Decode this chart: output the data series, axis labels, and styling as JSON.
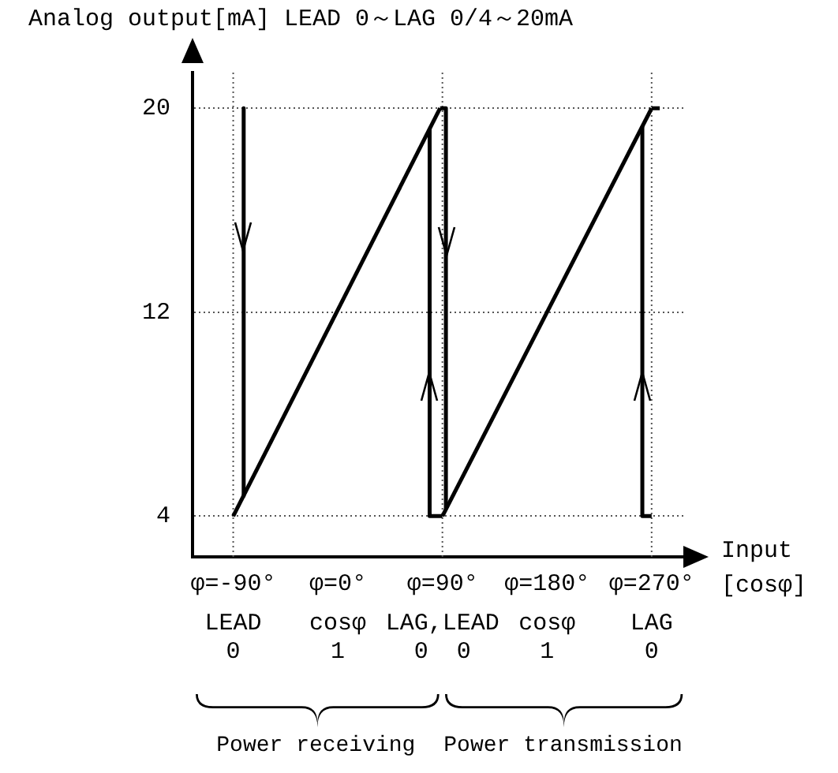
{
  "chart_data": {
    "type": "line",
    "ylabel": "Analog output[mA]  LEAD 0～LAG 0/4～20mA",
    "xlabel": "Input [cosφ]",
    "annotations": [
      "LEAD\n0",
      "cosφ\n1",
      "LAG,LEAD\n0  0",
      "cosφ\n1",
      "LAG\n0",
      "Power receiving",
      "Power transmission"
    ],
    "xlim": [
      -125,
      300
    ],
    "xticks": [
      {
        "value": -90,
        "label": "φ=-90°"
      },
      {
        "value": 0,
        "label": "φ=0°"
      },
      {
        "value": 90,
        "label": "φ=90°"
      },
      {
        "value": 180,
        "label": "φ=180°"
      },
      {
        "value": 270,
        "label": "φ=270°"
      }
    ],
    "ylim": [
      2.4,
      21.4
    ],
    "yticks": [
      4,
      12,
      20
    ],
    "grid": "y",
    "ref_lines": [
      {
        "axis": "x",
        "value": -90,
        "line_style": "dotted",
        "color": "#555555"
      },
      {
        "axis": "x",
        "value": 90,
        "line_style": "dotted",
        "color": "#555555"
      },
      {
        "axis": "x",
        "value": 270,
        "line_style": "dotted",
        "color": "#555555"
      }
    ],
    "series": [
      {
        "color": "#000000",
        "x": [
          -90,
          88
        ],
        "values": [
          4,
          20
        ]
      },
      {
        "color": "#000000",
        "x": [
          90,
          270
        ],
        "values": [
          4,
          20
        ]
      },
      {
        "color": "#000000",
        "x": [
          -81,
          -81
        ],
        "values": [
          20,
          4.8
        ]
      },
      {
        "color": "#000000",
        "x": [
          90,
          79,
          79
        ],
        "values": [
          4,
          4,
          19.2
        ]
      },
      {
        "color": "#000000",
        "x": [
          88,
          93,
          93
        ],
        "values": [
          20,
          20,
          4.3
        ]
      },
      {
        "color": "#000000",
        "x": [
          270,
          262,
          262
        ],
        "values": [
          4,
          4,
          19.3
        ]
      },
      {
        "color": "#000000",
        "x": [
          270,
          277
        ],
        "values": [
          20,
          20
        ]
      }
    ]
  }
}
